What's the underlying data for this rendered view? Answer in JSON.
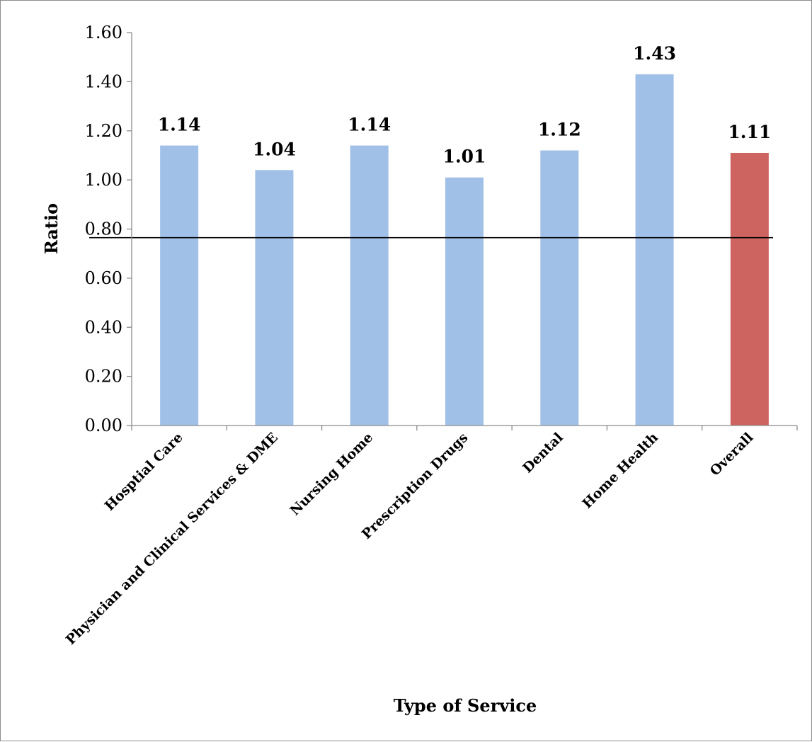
{
  "chart_data": {
    "type": "bar",
    "title": "",
    "xlabel": "Type of Service",
    "ylabel": "Ratio",
    "ylim": [
      0,
      1.6
    ],
    "y_ticks": [
      "0.00",
      "0.20",
      "0.40",
      "0.60",
      "0.80",
      "1.00",
      "1.20",
      "1.40",
      "1.60"
    ],
    "categories": [
      "Hosptial Care",
      "Physician and Clinical Services & DME",
      "Nursing Home",
      "Prescription Drugs",
      "Dental",
      "Home Health",
      "Overall"
    ],
    "values": [
      1.14,
      1.04,
      1.14,
      1.01,
      1.12,
      1.43,
      1.11
    ],
    "data_labels": [
      "1.14",
      "1.04",
      "1.14",
      "1.01",
      "1.12",
      "1.43",
      "1.11"
    ],
    "bar_colors": [
      "#a0c0e8",
      "#a0c0e8",
      "#a0c0e8",
      "#a0c0e8",
      "#a0c0e8",
      "#a0c0e8",
      "#cd645f"
    ],
    "reference_line": {
      "y_start": 0.765,
      "y_end": 0.765
    },
    "grid": false,
    "legend": "none"
  }
}
